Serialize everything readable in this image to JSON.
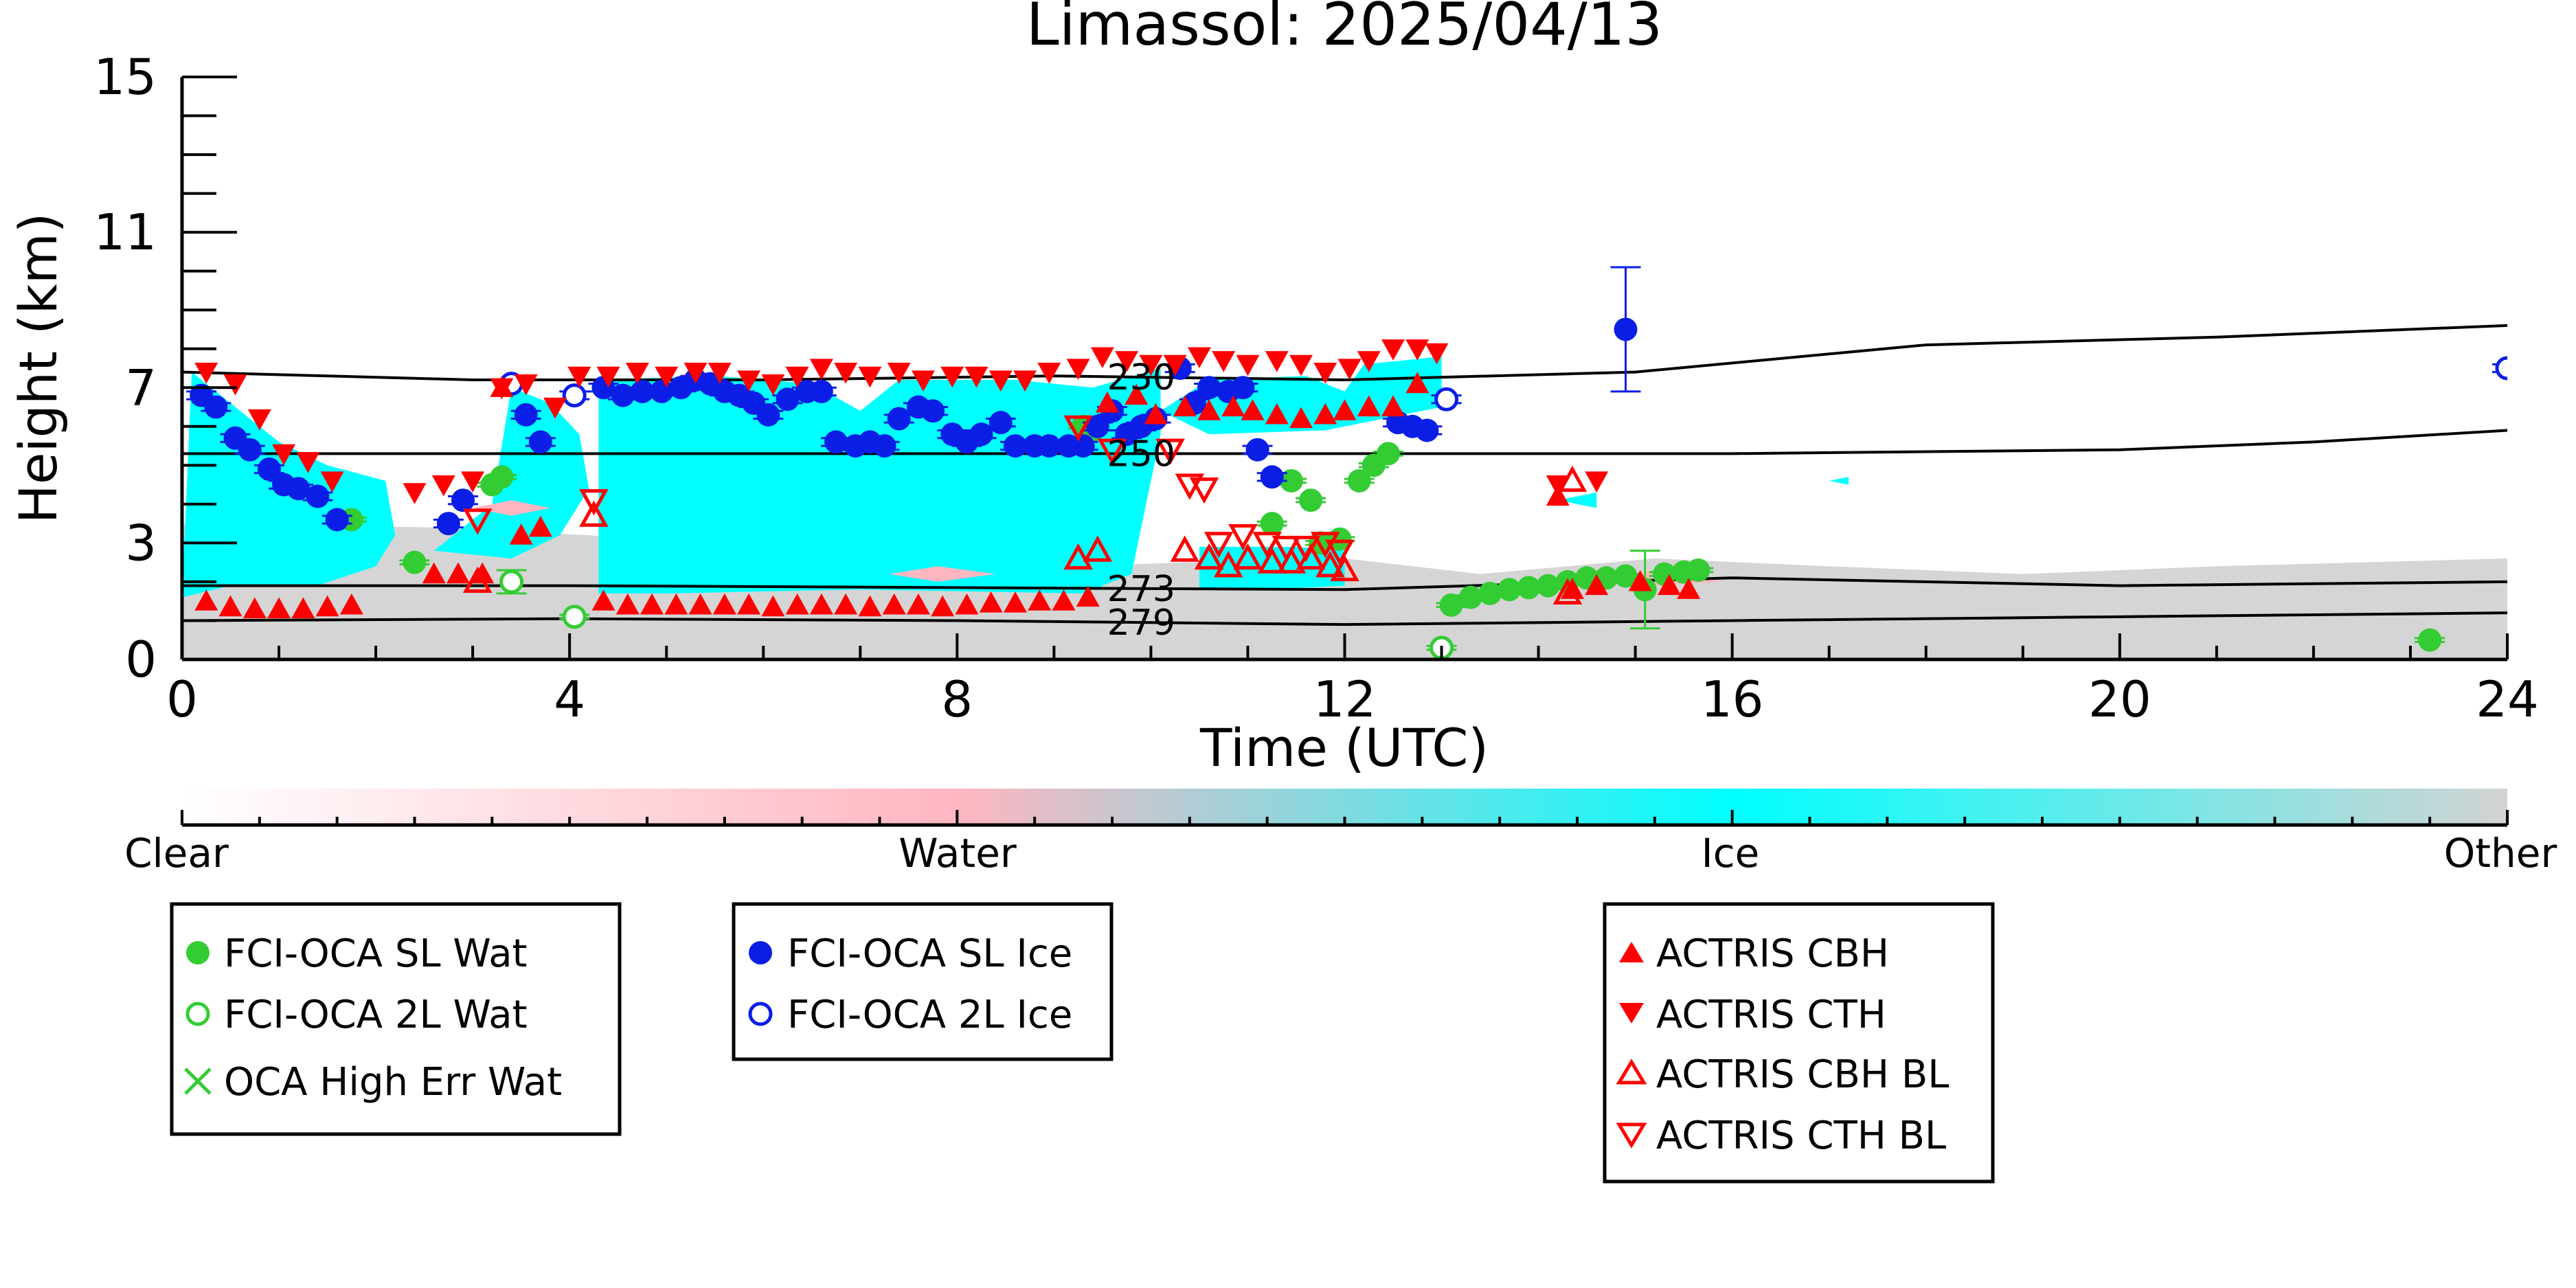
{
  "chart_data": {
    "type": "scatter",
    "title": "Limassol: 2025/04/13",
    "xlabel": "Time (UTC)",
    "ylabel": "Height (km)",
    "xlim": [
      0,
      24
    ],
    "ylim": [
      0,
      15
    ],
    "x_ticks": [
      0,
      4,
      8,
      12,
      16,
      20,
      24
    ],
    "y_ticks": [
      0,
      3,
      7,
      11,
      15
    ],
    "grid": false,
    "colorbar": {
      "labels": [
        "Clear",
        "Water",
        "Ice",
        "Other"
      ],
      "colors": {
        "clear": "#ffffff",
        "water": "#ffb6c1",
        "ice": "#00ffff",
        "other": "#d3d3d3"
      }
    },
    "isotherms": [
      {
        "label": "230",
        "x": [
          0,
          3,
          6,
          9,
          12,
          15,
          18,
          21,
          24
        ],
        "y": [
          7.4,
          7.2,
          7.2,
          7.3,
          7.2,
          7.4,
          8.1,
          8.3,
          8.6
        ]
      },
      {
        "label": "250",
        "x": [
          0,
          4,
          8,
          12,
          16,
          20,
          22,
          24
        ],
        "y": [
          5.3,
          5.3,
          5.3,
          5.3,
          5.3,
          5.4,
          5.6,
          5.9
        ]
      },
      {
        "label": "273",
        "x": [
          0,
          4,
          8,
          12,
          16,
          20,
          24
        ],
        "y": [
          1.9,
          1.9,
          1.85,
          1.8,
          2.1,
          1.9,
          2.0
        ]
      },
      {
        "label": "279",
        "x": [
          0,
          4,
          8,
          12,
          16,
          20,
          24
        ],
        "y": [
          1.0,
          1.05,
          1.0,
          0.9,
          1.0,
          1.1,
          1.2
        ]
      }
    ],
    "cloud_regions": {
      "ice": [
        [
          [
            0,
            1.6
          ],
          [
            0.1,
            7.4
          ],
          [
            0.5,
            6.6
          ],
          [
            1.0,
            5.6
          ],
          [
            1.5,
            5.0
          ],
          [
            2.1,
            4.6
          ],
          [
            2.2,
            3.2
          ],
          [
            2.0,
            2.4
          ],
          [
            1.4,
            1.9
          ],
          [
            0.5,
            1.9
          ]
        ],
        [
          [
            2.6,
            2.8
          ],
          [
            3.2,
            4.0
          ],
          [
            3.4,
            7.0
          ],
          [
            3.8,
            6.6
          ],
          [
            4.1,
            5.8
          ],
          [
            4.2,
            4.4
          ],
          [
            3.9,
            3.2
          ],
          [
            3.4,
            2.6
          ]
        ],
        [
          [
            4.3,
            1.7
          ],
          [
            4.3,
            7.2
          ],
          [
            5.5,
            7.3
          ],
          [
            6.5,
            7.1
          ],
          [
            7.0,
            6.4
          ],
          [
            7.4,
            7.2
          ],
          [
            8.6,
            7.2
          ],
          [
            9.4,
            7.0
          ],
          [
            10.1,
            7.5
          ],
          [
            10.1,
            5.8
          ],
          [
            9.8,
            2.2
          ],
          [
            9.3,
            1.7
          ],
          [
            7.0,
            1.8
          ],
          [
            5.0,
            1.7
          ]
        ],
        [
          [
            10.1,
            6.4
          ],
          [
            10.6,
            7.2
          ],
          [
            11.6,
            7.3
          ],
          [
            12.0,
            6.9
          ],
          [
            12.2,
            7.6
          ],
          [
            13.0,
            7.8
          ],
          [
            13.0,
            6.5
          ],
          [
            12.6,
            6.3
          ],
          [
            11.8,
            5.9
          ],
          [
            10.6,
            5.8
          ]
        ],
        [
          [
            10.5,
            1.8
          ],
          [
            10.5,
            2.9
          ],
          [
            11.5,
            2.9
          ],
          [
            12.0,
            2.8
          ],
          [
            12.0,
            1.9
          ],
          [
            11.2,
            1.8
          ]
        ],
        [
          [
            14.2,
            4.1
          ],
          [
            14.6,
            4.3
          ],
          [
            14.6,
            3.9
          ]
        ],
        [
          [
            17.0,
            4.6
          ],
          [
            17.2,
            4.7
          ],
          [
            17.2,
            4.5
          ]
        ]
      ],
      "other": [
        [
          [
            0,
            0
          ],
          [
            0,
            3.5
          ],
          [
            2.6,
            3.4
          ],
          [
            4.2,
            3.2
          ],
          [
            8.0,
            2.3
          ],
          [
            10.4,
            2.5
          ],
          [
            12.0,
            2.6
          ],
          [
            13.4,
            2.2
          ],
          [
            15.2,
            2.6
          ],
          [
            17.0,
            2.4
          ],
          [
            19.0,
            2.2
          ],
          [
            21.0,
            2.4
          ],
          [
            24,
            2.6
          ],
          [
            24,
            0
          ]
        ]
      ],
      "water": [
        [
          [
            3.0,
            3.9
          ],
          [
            3.4,
            4.1
          ],
          [
            3.8,
            3.9
          ],
          [
            3.4,
            3.7
          ]
        ],
        [
          [
            7.3,
            2.2
          ],
          [
            7.8,
            2.4
          ],
          [
            8.4,
            2.2
          ],
          [
            7.8,
            2.0
          ]
        ],
        [
          [
            14.6,
            2.0
          ],
          [
            15.2,
            2.3
          ],
          [
            15.9,
            2.0
          ],
          [
            15.2,
            1.9
          ]
        ]
      ]
    },
    "series": [
      {
        "name": "FCI-OCA SL Wat",
        "color": "#33cc33",
        "marker": "circle-filled",
        "x": [
          1.75,
          2.4,
          3.2,
          3.3,
          9.3,
          9.4,
          11.25,
          11.45,
          11.65,
          11.75,
          11.95,
          12.15,
          12.3,
          12.45,
          13.1,
          13.3,
          13.5,
          13.7,
          13.9,
          14.1,
          14.3,
          14.5,
          14.7,
          14.9,
          15.1,
          15.3,
          15.5,
          15.65,
          23.2
        ],
        "y": [
          3.6,
          2.5,
          4.5,
          4.7,
          6.0,
          5.9,
          3.5,
          4.6,
          4.1,
          3.0,
          3.1,
          4.6,
          5.0,
          5.3,
          1.4,
          1.6,
          1.7,
          1.8,
          1.85,
          1.9,
          2.0,
          2.1,
          2.1,
          2.15,
          1.8,
          2.2,
          2.25,
          2.3,
          0.5
        ],
        "err": [
          0.05,
          0.05,
          0.05,
          0.05,
          0.05,
          0.05,
          0.05,
          0.05,
          0.05,
          0.05,
          0.05,
          0.05,
          0.05,
          0.05,
          0.05,
          0.05,
          0.05,
          0.05,
          0.05,
          0.05,
          0.05,
          0.05,
          0.05,
          0.05,
          1.0,
          0.05,
          0.05,
          0.05,
          0.05
        ]
      },
      {
        "name": "FCI-OCA 2L Wat",
        "color": "#33cc33",
        "marker": "circle-open",
        "x": [
          3.4,
          4.05,
          13.0
        ],
        "y": [
          2.0,
          1.1,
          0.3
        ],
        "err": [
          0.3,
          0.05,
          0.05
        ]
      },
      {
        "name": "OCA High Err Wat",
        "color": "#33cc33",
        "marker": "x",
        "x": [],
        "y": []
      },
      {
        "name": "FCI-OCA SL Ice",
        "color": "#0a1ee6",
        "marker": "circle-filled",
        "x": [
          0.2,
          0.35,
          0.55,
          0.7,
          0.9,
          1.05,
          1.2,
          1.4,
          1.6,
          2.75,
          2.9,
          3.55,
          3.7,
          4.35,
          4.55,
          4.75,
          4.95,
          5.15,
          5.3,
          5.45,
          5.6,
          5.75,
          5.9,
          6.05,
          6.25,
          6.45,
          6.6,
          6.75,
          6.95,
          7.1,
          7.25,
          7.4,
          7.6,
          7.75,
          7.95,
          8.1,
          8.25,
          8.45,
          8.6,
          8.8,
          8.95,
          9.15,
          9.3,
          9.45,
          9.6,
          9.75,
          9.9,
          10.05,
          10.3,
          10.45,
          10.6,
          10.8,
          10.95,
          11.1,
          11.25,
          12.55,
          12.7,
          12.85,
          14.9
        ],
        "y": [
          6.8,
          6.5,
          5.7,
          5.4,
          4.9,
          4.5,
          4.4,
          4.2,
          3.6,
          3.5,
          4.1,
          6.3,
          5.6,
          7.0,
          6.8,
          6.9,
          6.9,
          7.0,
          7.2,
          7.1,
          6.9,
          6.8,
          6.6,
          6.3,
          6.7,
          6.9,
          6.9,
          5.6,
          5.5,
          5.6,
          5.5,
          6.2,
          6.5,
          6.4,
          5.8,
          5.6,
          5.8,
          6.1,
          5.5,
          5.5,
          5.5,
          5.5,
          5.5,
          6.0,
          6.4,
          5.8,
          6.0,
          6.2,
          7.5,
          6.6,
          7.0,
          6.9,
          7.0,
          5.4,
          4.7,
          6.1,
          6.0,
          5.9,
          8.5
        ],
        "err": [
          0.1,
          0.1,
          0.1,
          0.1,
          0.1,
          0.1,
          0.1,
          0.1,
          0.1,
          0.1,
          0.1,
          0.1,
          0.1,
          0.1,
          0.1,
          0.1,
          0.1,
          0.1,
          0.1,
          0.1,
          0.1,
          0.1,
          0.1,
          0.1,
          0.1,
          0.1,
          0.1,
          0.1,
          0.1,
          0.1,
          0.1,
          0.1,
          0.1,
          0.1,
          0.1,
          0.1,
          0.1,
          0.1,
          0.1,
          0.1,
          0.1,
          0.1,
          0.1,
          0.1,
          0.1,
          0.1,
          0.1,
          0.1,
          0.1,
          0.1,
          0.1,
          0.1,
          0.1,
          0.1,
          0.1,
          0.1,
          0.1,
          0.1,
          1.6
        ]
      },
      {
        "name": "FCI-OCA 2L Ice",
        "color": "#0a1ee6",
        "marker": "circle-open",
        "x": [
          3.4,
          4.05,
          13.05,
          24.0
        ],
        "y": [
          7.1,
          6.8,
          6.7,
          7.5
        ],
        "err": [
          0.1,
          0.1,
          0.1,
          0.1
        ]
      },
      {
        "name": "ACTRIS CBH",
        "color": "#ff0000",
        "marker": "triangle-up-filled",
        "x": [
          0.25,
          0.5,
          0.75,
          1.0,
          1.25,
          1.5,
          1.75,
          2.6,
          2.85,
          3.1,
          3.3,
          3.5,
          3.7,
          4.35,
          4.6,
          4.85,
          5.1,
          5.35,
          5.6,
          5.85,
          6.1,
          6.35,
          6.6,
          6.85,
          7.1,
          7.35,
          7.6,
          7.85,
          8.1,
          8.35,
          8.6,
          8.85,
          9.1,
          9.35,
          9.55,
          9.85,
          10.05,
          10.35,
          10.6,
          10.85,
          11.05,
          11.3,
          11.55,
          11.8,
          12.0,
          12.25,
          12.5,
          12.75,
          14.2,
          14.35,
          14.6,
          15.05,
          15.35,
          15.55
        ],
        "y": [
          1.5,
          1.35,
          1.3,
          1.3,
          1.3,
          1.35,
          1.4,
          2.2,
          2.2,
          2.2,
          7.0,
          3.2,
          3.4,
          1.5,
          1.4,
          1.4,
          1.4,
          1.4,
          1.4,
          1.4,
          1.35,
          1.4,
          1.4,
          1.4,
          1.35,
          1.4,
          1.4,
          1.35,
          1.4,
          1.45,
          1.45,
          1.5,
          1.5,
          1.6,
          6.6,
          6.8,
          6.3,
          6.5,
          6.4,
          6.5,
          6.4,
          6.3,
          6.2,
          6.3,
          6.4,
          6.5,
          6.5,
          7.1,
          4.2,
          1.8,
          1.9,
          2.0,
          1.9,
          1.8
        ],
        "err": [
          0,
          0,
          0,
          0,
          0,
          0,
          0,
          0,
          0,
          0,
          0,
          0,
          0,
          0,
          0,
          0,
          0,
          0,
          0,
          0,
          0,
          0,
          0,
          0,
          0,
          0,
          0,
          0,
          0,
          0,
          0,
          0,
          0,
          0,
          0,
          0,
          0,
          0,
          0,
          0,
          0,
          0,
          0,
          0,
          0,
          0,
          0,
          0,
          0,
          0,
          0,
          0,
          0,
          0
        ]
      },
      {
        "name": "ACTRIS CTH",
        "color": "#ff0000",
        "marker": "triangle-down-filled",
        "x": [
          0.25,
          0.55,
          0.8,
          1.05,
          1.3,
          1.55,
          2.4,
          2.7,
          3.0,
          3.3,
          3.55,
          3.85,
          4.1,
          4.4,
          4.7,
          5.0,
          5.3,
          5.55,
          5.85,
          6.1,
          6.35,
          6.6,
          6.85,
          7.1,
          7.4,
          7.65,
          7.95,
          8.2,
          8.45,
          8.7,
          8.95,
          9.25,
          9.5,
          9.75,
          10.0,
          10.25,
          10.5,
          10.75,
          11.0,
          11.3,
          11.55,
          11.8,
          12.05,
          12.25,
          12.5,
          12.75,
          12.95,
          14.2,
          14.6
        ],
        "y": [
          7.4,
          7.1,
          6.2,
          5.3,
          5.1,
          4.6,
          4.3,
          4.5,
          4.6,
          7.0,
          7.1,
          6.5,
          7.3,
          7.3,
          7.4,
          7.3,
          7.4,
          7.4,
          7.2,
          7.1,
          7.3,
          7.5,
          7.4,
          7.3,
          7.4,
          7.2,
          7.3,
          7.3,
          7.2,
          7.2,
          7.4,
          7.5,
          7.8,
          7.7,
          7.6,
          7.6,
          7.8,
          7.7,
          7.6,
          7.7,
          7.6,
          7.4,
          7.5,
          7.7,
          8.0,
          8.0,
          7.9,
          4.5,
          4.6
        ],
        "err": [
          0,
          0,
          0,
          0,
          0,
          0,
          0,
          0,
          0,
          0,
          0,
          0,
          0,
          0,
          0,
          0,
          0,
          0,
          0,
          0,
          0,
          0,
          0,
          0,
          0,
          0,
          0,
          0,
          0,
          0,
          0,
          0,
          0,
          0,
          0,
          0,
          0,
          0,
          0,
          0,
          0,
          0,
          0,
          0,
          0,
          0,
          0,
          0,
          0
        ]
      },
      {
        "name": "ACTRIS CBH BL",
        "color": "#ff0000",
        "marker": "triangle-up-open",
        "x": [
          3.05,
          4.25,
          9.25,
          9.45,
          10.35,
          10.6,
          10.8,
          11.0,
          11.25,
          11.45,
          11.65,
          11.85,
          12.0,
          14.3,
          14.35
        ],
        "y": [
          2.0,
          3.7,
          2.6,
          2.8,
          2.8,
          2.6,
          2.4,
          2.6,
          2.5,
          2.5,
          2.6,
          2.4,
          2.3,
          1.7,
          4.6
        ],
        "err": [
          0,
          0,
          0,
          0,
          0,
          0,
          0,
          0,
          0,
          0,
          0,
          0,
          0,
          0,
          0
        ]
      },
      {
        "name": "ACTRIS CTH BL",
        "color": "#ff0000",
        "marker": "triangle-down-open",
        "x": [
          3.05,
          4.25,
          9.25,
          9.6,
          10.2,
          10.4,
          10.55,
          10.7,
          10.95,
          11.2,
          11.4,
          11.6,
          11.8,
          11.95
        ],
        "y": [
          3.6,
          4.1,
          6.0,
          5.4,
          5.4,
          4.5,
          4.4,
          3.0,
          3.2,
          3.0,
          2.9,
          2.9,
          3.0,
          2.8
        ],
        "err": [
          0,
          0,
          0,
          0,
          0,
          0,
          0,
          0,
          0,
          0,
          0,
          0,
          0,
          0
        ]
      }
    ]
  }
}
